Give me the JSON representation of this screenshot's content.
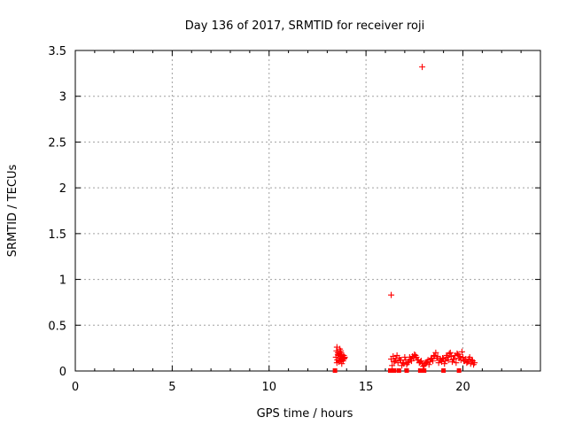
{
  "chart_data": {
    "type": "scatter",
    "title": "Day 136 of 2017, SRMTID for receiver roji",
    "xlabel": "GPS time / hours",
    "ylabel": "SRMTID / TECUs",
    "xlim": [
      0,
      24
    ],
    "ylim": [
      0,
      3.5
    ],
    "x_ticks": [
      0,
      5,
      10,
      15,
      20
    ],
    "x_tick_labels": [
      "0",
      "5",
      "10",
      "15",
      "20"
    ],
    "y_ticks": [
      0,
      0.5,
      1,
      1.5,
      2,
      2.5,
      3,
      3.5
    ],
    "y_tick_labels": [
      "0",
      "0.5",
      "1",
      "1.5",
      "2",
      "2.5",
      "3",
      "3.5"
    ],
    "grid": true,
    "marker": "plus",
    "color": "#ff0000",
    "series": [
      {
        "name": "",
        "x": [
          13.45,
          13.48,
          13.5,
          13.52,
          13.55,
          13.57,
          13.6,
          13.62,
          13.65,
          13.68,
          13.7,
          13.72,
          13.75,
          13.78,
          13.8,
          13.82,
          13.85,
          13.88,
          13.9,
          13.5,
          13.6,
          13.7,
          13.55,
          13.65,
          13.75,
          13.85,
          16.3,
          16.3,
          16.4,
          16.5,
          16.6,
          16.7,
          16.8,
          16.9,
          17.0,
          17.1,
          17.2,
          17.3,
          17.4,
          17.5,
          17.6,
          17.7,
          17.8,
          17.9,
          18.0,
          18.1,
          18.2,
          18.3,
          18.4,
          18.5,
          18.6,
          18.7,
          18.8,
          18.9,
          19.0,
          19.1,
          19.2,
          19.3,
          19.4,
          19.5,
          19.6,
          19.7,
          19.8,
          19.9,
          20.0,
          20.1,
          20.2,
          20.3,
          20.4,
          20.5,
          20.6,
          16.35,
          16.45,
          16.55,
          16.65,
          16.75,
          16.85,
          16.95,
          17.05,
          17.15,
          17.25,
          17.35,
          17.45,
          17.55,
          17.65,
          17.75,
          17.85,
          17.95,
          18.05,
          18.15,
          18.25,
          18.35,
          18.45,
          18.55,
          18.65,
          18.75,
          18.85,
          18.95,
          19.05,
          19.15,
          19.25,
          19.35,
          19.45,
          19.55,
          19.65,
          19.75,
          19.85,
          19.95,
          20.05,
          20.15,
          20.25,
          20.35,
          20.45,
          20.55,
          17.9
        ],
        "y": [
          0.15,
          0.22,
          0.26,
          0.12,
          0.2,
          0.17,
          0.11,
          0.19,
          0.14,
          0.2,
          0.12,
          0.16,
          0.18,
          0.13,
          0.15,
          0.11,
          0.17,
          0.14,
          0.15,
          0.09,
          0.1,
          0.22,
          0.18,
          0.24,
          0.08,
          0.13,
          0.83,
          0.13,
          0.16,
          0.11,
          0.17,
          0.14,
          0.12,
          0.09,
          0.15,
          0.07,
          0.1,
          0.13,
          0.16,
          0.18,
          0.15,
          0.12,
          0.1,
          0.08,
          0.06,
          0.09,
          0.12,
          0.1,
          0.14,
          0.17,
          0.2,
          0.16,
          0.12,
          0.1,
          0.13,
          0.11,
          0.15,
          0.19,
          0.16,
          0.13,
          0.17,
          0.19,
          0.14,
          0.12,
          0.15,
          0.11,
          0.09,
          0.13,
          0.08,
          0.11,
          0.09,
          0.06,
          0.1,
          0.14,
          0.09,
          0.12,
          0.06,
          0.08,
          0.12,
          0.09,
          0.15,
          0.11,
          0.14,
          0.17,
          0.12,
          0.09,
          0.11,
          0.05,
          0.08,
          0.1,
          0.07,
          0.13,
          0.11,
          0.16,
          0.14,
          0.09,
          0.12,
          0.14,
          0.08,
          0.17,
          0.12,
          0.2,
          0.1,
          0.13,
          0.09,
          0.18,
          0.16,
          0.21,
          0.11,
          0.13,
          0.1,
          0.15,
          0.12,
          0.07,
          3.32
        ]
      },
      {
        "name": "",
        "marker": "square",
        "x": [
          13.4,
          16.25,
          16.35,
          16.45,
          16.7,
          17.1,
          17.8,
          18.0,
          19.0,
          19.8
        ],
        "y": [
          0,
          0,
          0,
          0,
          0,
          0,
          0,
          0,
          0,
          0
        ]
      }
    ]
  }
}
